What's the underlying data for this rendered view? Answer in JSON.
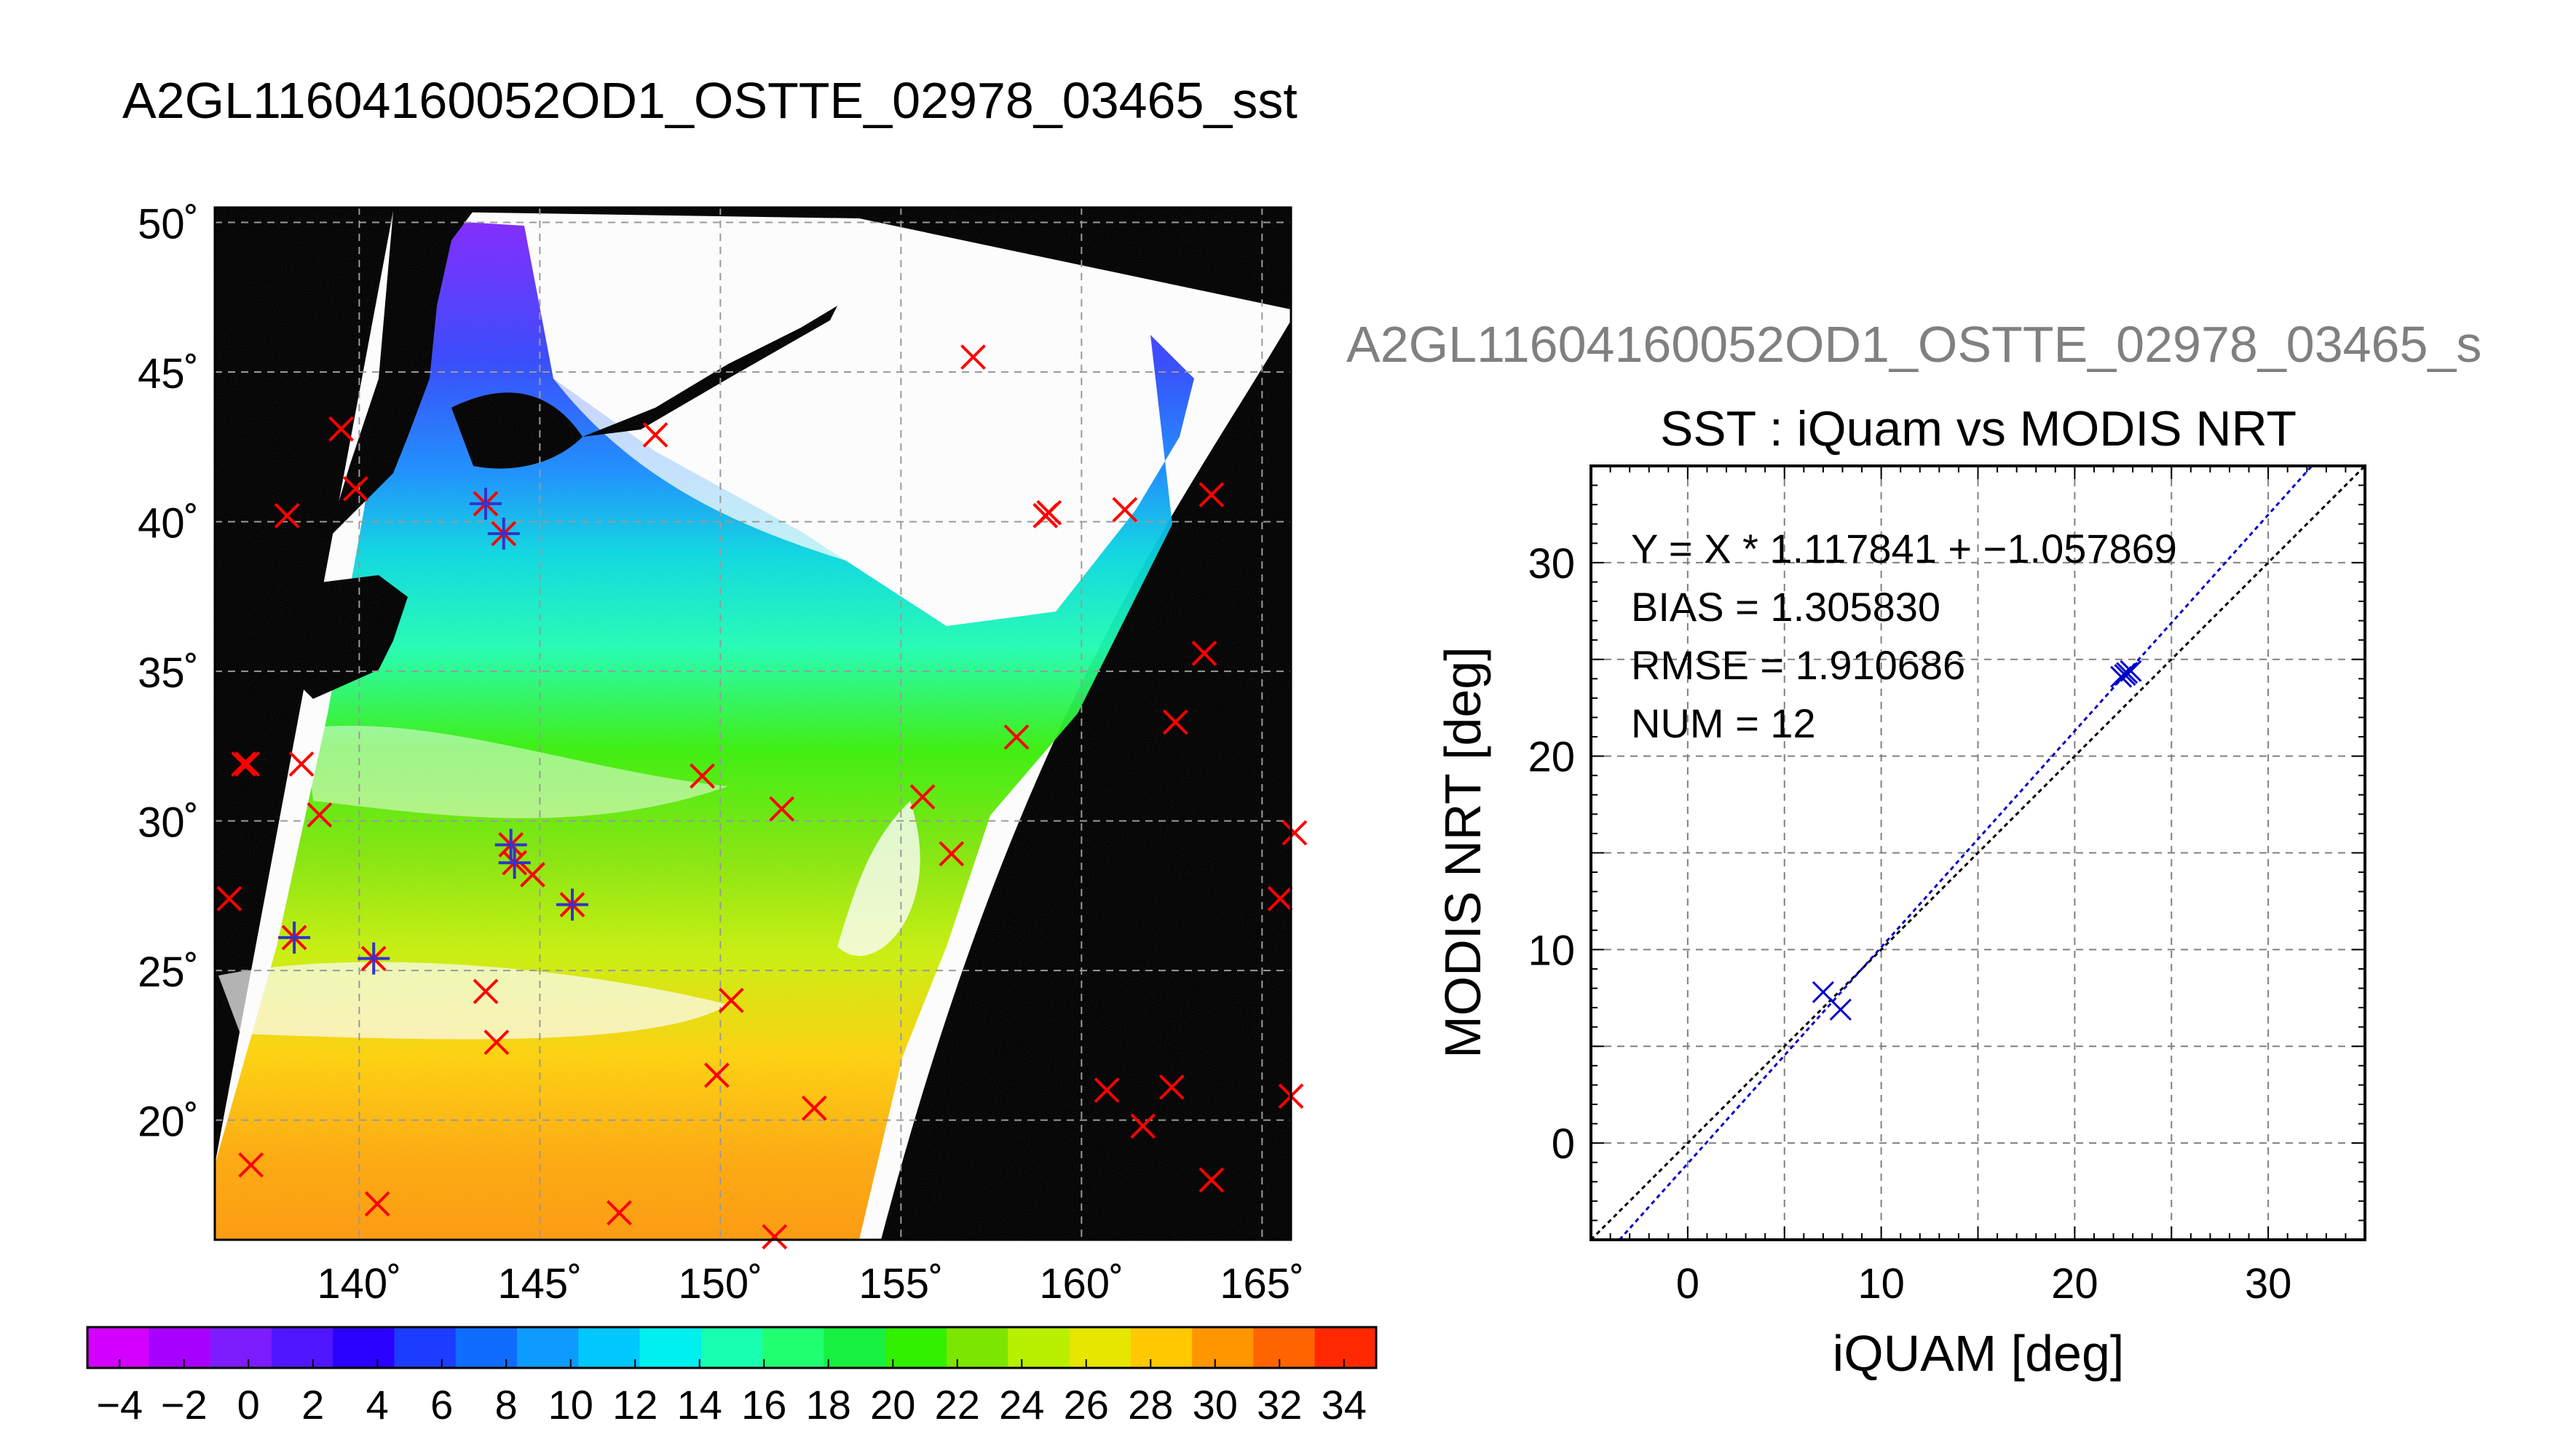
{
  "page_title": "A2GL11604160052OD1_OSTTE_02978_03465_sst",
  "chart_data": [
    {
      "type": "scatter",
      "title": "A2GL11604160052OD1_OSTTE_02978_03465_sst",
      "xlabel": "",
      "ylabel": "",
      "xlim": [
        136.0,
        165.8
      ],
      "ylim": [
        16.0,
        50.5
      ],
      "x_ticks": [
        140,
        145,
        150,
        155,
        160,
        165
      ],
      "y_ticks": [
        20,
        25,
        30,
        35,
        40,
        45,
        50
      ],
      "x_tick_labels": [
        "140˚",
        "145˚",
        "150˚",
        "155˚",
        "160˚",
        "165˚"
      ],
      "y_tick_labels": [
        "20˚",
        "25˚",
        "30˚",
        "35˚",
        "40˚",
        "45˚",
        "50˚"
      ],
      "grid": true,
      "background_color": "#000000",
      "series": [
        {
          "marker": "x",
          "color": "#ff0000",
          "points": [
            [
              157.0,
              45.5
            ],
            [
              148.2,
              42.9
            ],
            [
              139.5,
              43.1
            ],
            [
              139.9,
              41.1
            ],
            [
              138.0,
              40.2
            ],
            [
              143.5,
              40.6
            ],
            [
              144.0,
              39.6
            ],
            [
              159.0,
              40.2
            ],
            [
              159.1,
              40.3
            ],
            [
              161.2,
              40.4
            ],
            [
              163.6,
              40.9
            ],
            [
              163.4,
              35.6
            ],
            [
              162.6,
              33.3
            ],
            [
              158.2,
              32.8
            ],
            [
              136.8,
              31.9
            ],
            [
              136.9,
              31.9
            ],
            [
              138.4,
              31.9
            ],
            [
              138.9,
              30.2
            ],
            [
              149.5,
              31.5
            ],
            [
              151.7,
              30.4
            ],
            [
              155.6,
              30.8
            ],
            [
              156.4,
              28.9
            ],
            [
              144.2,
              29.2
            ],
            [
              144.3,
              28.6
            ],
            [
              144.8,
              28.2
            ],
            [
              145.9,
              27.2
            ],
            [
              136.4,
              27.4
            ],
            [
              138.2,
              26.1
            ],
            [
              140.4,
              25.4
            ],
            [
              143.5,
              24.3
            ],
            [
              150.3,
              24.0
            ],
            [
              143.8,
              22.6
            ],
            [
              149.9,
              21.5
            ],
            [
              152.6,
              20.4
            ],
            [
              160.7,
              21.0
            ],
            [
              162.5,
              21.1
            ],
            [
              161.7,
              19.8
            ],
            [
              165.5,
              27.4
            ],
            [
              165.9,
              29.6
            ],
            [
              165.8,
              20.8
            ],
            [
              137.0,
              18.5
            ],
            [
              140.5,
              17.2
            ],
            [
              147.2,
              16.9
            ],
            [
              151.5,
              16.1
            ],
            [
              163.6,
              18.0
            ]
          ]
        },
        {
          "marker": "*",
          "color": "#3333cc",
          "points": [
            [
              143.5,
              40.6
            ],
            [
              144.0,
              39.6
            ],
            [
              144.2,
              29.2
            ],
            [
              144.3,
              28.6
            ],
            [
              145.9,
              27.2
            ],
            [
              138.2,
              26.1
            ],
            [
              140.4,
              25.4
            ]
          ]
        }
      ]
    },
    {
      "type": "heatmap",
      "title": "",
      "orientation": "horizontal",
      "range": [
        -5,
        35
      ],
      "tick_values": [
        -4,
        -2,
        0,
        2,
        4,
        6,
        8,
        10,
        12,
        14,
        16,
        18,
        20,
        22,
        24,
        26,
        28,
        30,
        32,
        34
      ],
      "tick_labels": [
        "−4",
        "−2",
        "0",
        "2",
        "4",
        "6",
        "8",
        "10",
        "12",
        "14",
        "16",
        "18",
        "20",
        "22",
        "24",
        "26",
        "28",
        "30",
        "32",
        "34"
      ],
      "colors": [
        "#d400ff",
        "#a800ff",
        "#7c1cff",
        "#5016ff",
        "#2a00ff",
        "#1c3cff",
        "#0f6cff",
        "#0e9bff",
        "#00c8ff",
        "#00f0f0",
        "#17ffb0",
        "#1fff70",
        "#16f040",
        "#31f000",
        "#7de600",
        "#b8f000",
        "#e6e600",
        "#ffc800",
        "#ff9600",
        "#ff6400",
        "#ff2800"
      ]
    },
    {
      "type": "scatter",
      "header": "A2GL11604160052OD1_OSTTE_02978_03465_s",
      "title": "SST : iQuam vs MODIS NRT",
      "xlabel": "iQUAM [deg]",
      "ylabel": "MODIS NRT [deg]",
      "xlim": [
        -5,
        35
      ],
      "ylim": [
        -5,
        35
      ],
      "x_ticks": [
        0,
        10,
        20,
        30
      ],
      "y_ticks": [
        0,
        10,
        20,
        30
      ],
      "grid": true,
      "legend_placement": "none",
      "stats": [
        "Y = X * 1.117841 + −1.057869",
        "BIAS = 1.305830",
        "RMSE = 1.910686",
        "NUM = 12"
      ],
      "points": [
        [
          7.0,
          7.8
        ],
        [
          7.9,
          6.9
        ],
        [
          22.4,
          24.1
        ],
        [
          22.9,
          24.4
        ],
        [
          22.6,
          24.2
        ],
        [
          22.7,
          24.3
        ]
      ],
      "fit_line": {
        "slope": 1.117841,
        "intercept": -1.057869,
        "color": "#0000cc"
      },
      "one_to_one_line": {
        "slope": 1,
        "intercept": 0,
        "color": "#000000"
      }
    }
  ]
}
